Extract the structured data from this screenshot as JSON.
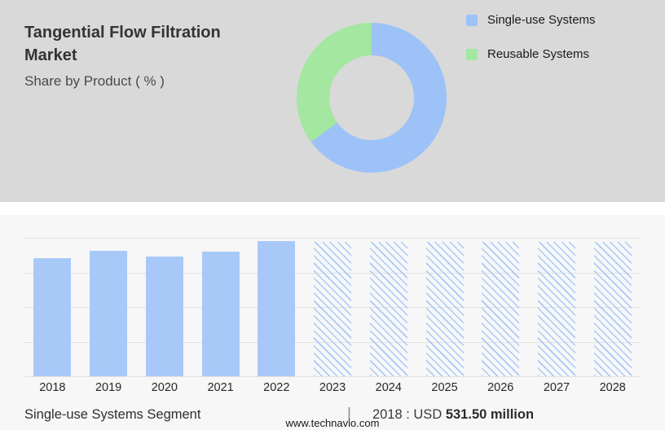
{
  "header": {
    "title": "Tangential Flow Filtration Market",
    "subtitle": "Share by Product ( % )"
  },
  "donut": {
    "segments": [
      {
        "label": "Single-use Systems",
        "value": 65,
        "color": "#9dc2f8"
      },
      {
        "label": "Reusable Systems",
        "value": 35,
        "color": "#a3e7a0"
      }
    ]
  },
  "chart_data": {
    "type": "bar",
    "title": "",
    "unit": "USD million",
    "xlabel": "",
    "ylabel": "",
    "ylim": [
      0,
      625
    ],
    "grid": true,
    "bar_color": "#a8c9f8",
    "categories": [
      "2018",
      "2019",
      "2020",
      "2021",
      "2022",
      "2023",
      "2024",
      "2025",
      "2026",
      "2027",
      "2028"
    ],
    "points": [
      {
        "year": "2018",
        "value": 531.5,
        "style": "solid"
      },
      {
        "year": "2019",
        "value": 566,
        "style": "solid"
      },
      {
        "year": "2020",
        "value": 541,
        "style": "solid"
      },
      {
        "year": "2021",
        "value": 563,
        "style": "solid"
      },
      {
        "year": "2022",
        "value": 612,
        "style": "solid"
      },
      {
        "year": "2023",
        "value": 608,
        "style": "hatched"
      },
      {
        "year": "2024",
        "value": 608,
        "style": "hatched"
      },
      {
        "year": "2025",
        "value": 608,
        "style": "hatched"
      },
      {
        "year": "2026",
        "value": 608,
        "style": "hatched"
      },
      {
        "year": "2027",
        "value": 608,
        "style": "hatched"
      },
      {
        "year": "2028",
        "value": 608,
        "style": "hatched"
      }
    ]
  },
  "footer": {
    "segment_label": "Single-use Systems Segment",
    "separator": "|",
    "stat_prefix": "2018 : USD ",
    "stat_value": "531.50 million",
    "website": "www.technavio.com"
  }
}
